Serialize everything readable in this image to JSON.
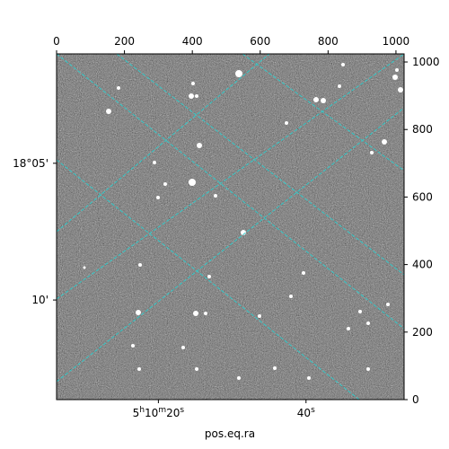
{
  "chart_data": {
    "type": "image",
    "xlabel": "pos.eq.ra",
    "ylabel": "",
    "xlim": [
      0,
      1024
    ],
    "ylim": [
      0,
      1024
    ],
    "pixel_axes": {
      "top_ticks": [
        0,
        200,
        400,
        600,
        800,
        1000
      ],
      "right_ticks": [
        0,
        200,
        400,
        600,
        800,
        1000
      ]
    },
    "world_axes": {
      "ra_ticks": [
        {
          "label_h": "5",
          "label_m": "10",
          "label_s": "20",
          "show_hm": true,
          "x": 300
        },
        {
          "label_h": "",
          "label_m": "",
          "label_s": "40",
          "show_hm": false,
          "x": 735
        }
      ],
      "dec_ticks": [
        {
          "label": "18°05'",
          "y": 700
        },
        {
          "label": "10'",
          "y": 295
        }
      ]
    },
    "grid": {
      "visible": true,
      "color": "#33c8c8",
      "style": "dashed"
    },
    "image": {
      "colormap": "gray",
      "description_stars": true
    }
  }
}
